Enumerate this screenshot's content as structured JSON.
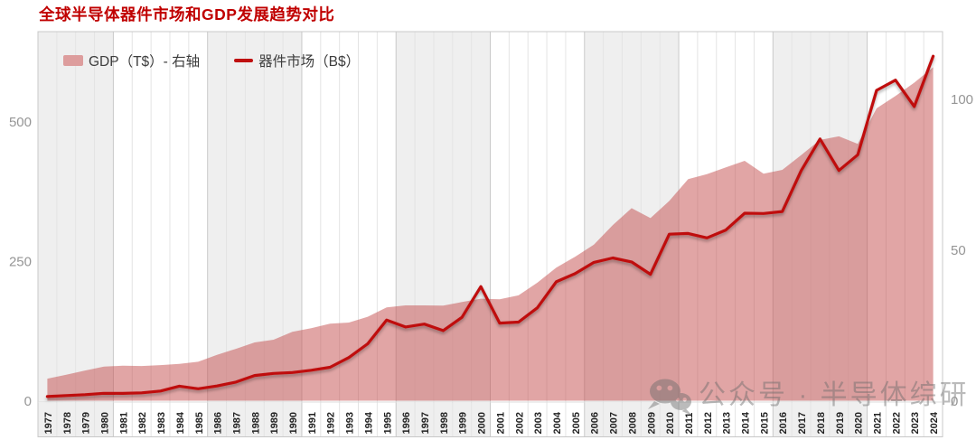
{
  "title": "全球半导体器件市场和GDP发展趋势对比",
  "legend": {
    "gdp_label": "GDP（T$）- 右轴",
    "market_label": "器件市场（B$）"
  },
  "watermark": {
    "icon": "wechat-icon",
    "text": "公众号 · 半导体综研"
  },
  "colors": {
    "title": "#c00000",
    "line": "#bf1010",
    "area_fill": "rgba(198,83,83,0.52)",
    "legend_area_swatch": "#dd9d9d",
    "band_gray": "#efefef",
    "band_white": "#ffffff",
    "grid_minor": "#e4e4e4",
    "grid_major": "#c9c9c9",
    "plot_border": "#c8c8c8",
    "axis_tick_text": "#959595",
    "x_label_text": "#222222",
    "watermark_gray": "#6b6b6b"
  },
  "chart_data": {
    "type": "area+line combo, dual axis",
    "title": "全球半导体器件市场和GDP发展趋势对比",
    "x": [
      1977,
      1978,
      1979,
      1980,
      1981,
      1982,
      1983,
      1984,
      1985,
      1986,
      1987,
      1988,
      1989,
      1990,
      1991,
      1992,
      1993,
      1994,
      1995,
      1996,
      1997,
      1998,
      1999,
      2000,
      2001,
      2002,
      2003,
      2004,
      2005,
      2006,
      2007,
      2008,
      2009,
      2010,
      2011,
      2012,
      2013,
      2014,
      2015,
      2016,
      2017,
      2018,
      2019,
      2020,
      2021,
      2022,
      2023,
      2024
    ],
    "series": [
      {
        "name": "GDP（T$）- 右轴",
        "type": "area",
        "axis": "right",
        "unit": "T$",
        "values": [
          7.3,
          8.6,
          10.0,
          11.3,
          11.6,
          11.5,
          11.8,
          12.2,
          12.9,
          15.2,
          17.2,
          19.3,
          20.2,
          22.8,
          24.0,
          25.5,
          25.9,
          27.8,
          30.9,
          31.6,
          31.6,
          31.5,
          32.7,
          33.8,
          33.6,
          34.9,
          39.1,
          44.1,
          47.7,
          51.7,
          58.2,
          63.8,
          60.5,
          66.2,
          73.4,
          75.1,
          77.3,
          79.5,
          75.2,
          76.5,
          81.4,
          86.4,
          87.6,
          85.1,
          96.9,
          101.0,
          105.4,
          110.5
        ]
      },
      {
        "name": "器件市场（B$）",
        "type": "line",
        "axis": "left",
        "unit": "B$",
        "values": [
          7.5,
          9.2,
          10.9,
          13.2,
          13.1,
          14.0,
          17.3,
          26.1,
          21.3,
          26.4,
          33.3,
          45.1,
          48.8,
          50.5,
          54.6,
          59.9,
          77.3,
          101.9,
          144.4,
          132.0,
          137.2,
          125.6,
          149.4,
          204.4,
          139.0,
          140.7,
          166.4,
          213.0,
          227.5,
          247.7,
          255.6,
          248.6,
          226.3,
          298.3,
          299.5,
          291.6,
          305.6,
          335.8,
          335.2,
          338.9,
          412.2,
          468.8,
          412.3,
          440.4,
          555.9,
          574.1,
          526.9,
          617.0
        ]
      }
    ],
    "left_axis": {
      "label": "器件市场（B$）",
      "ticks": [
        0,
        250,
        500
      ],
      "range_visible": [
        0,
        660
      ]
    },
    "right_axis": {
      "label": "GDP（T$）",
      "ticks": [
        0,
        50,
        100
      ],
      "range_visible": [
        0,
        122
      ]
    },
    "x_band_group_years": 5,
    "grid": "vertical yearly gridlines, alternating 5-year shaded bands",
    "legend_position": "top-left"
  }
}
